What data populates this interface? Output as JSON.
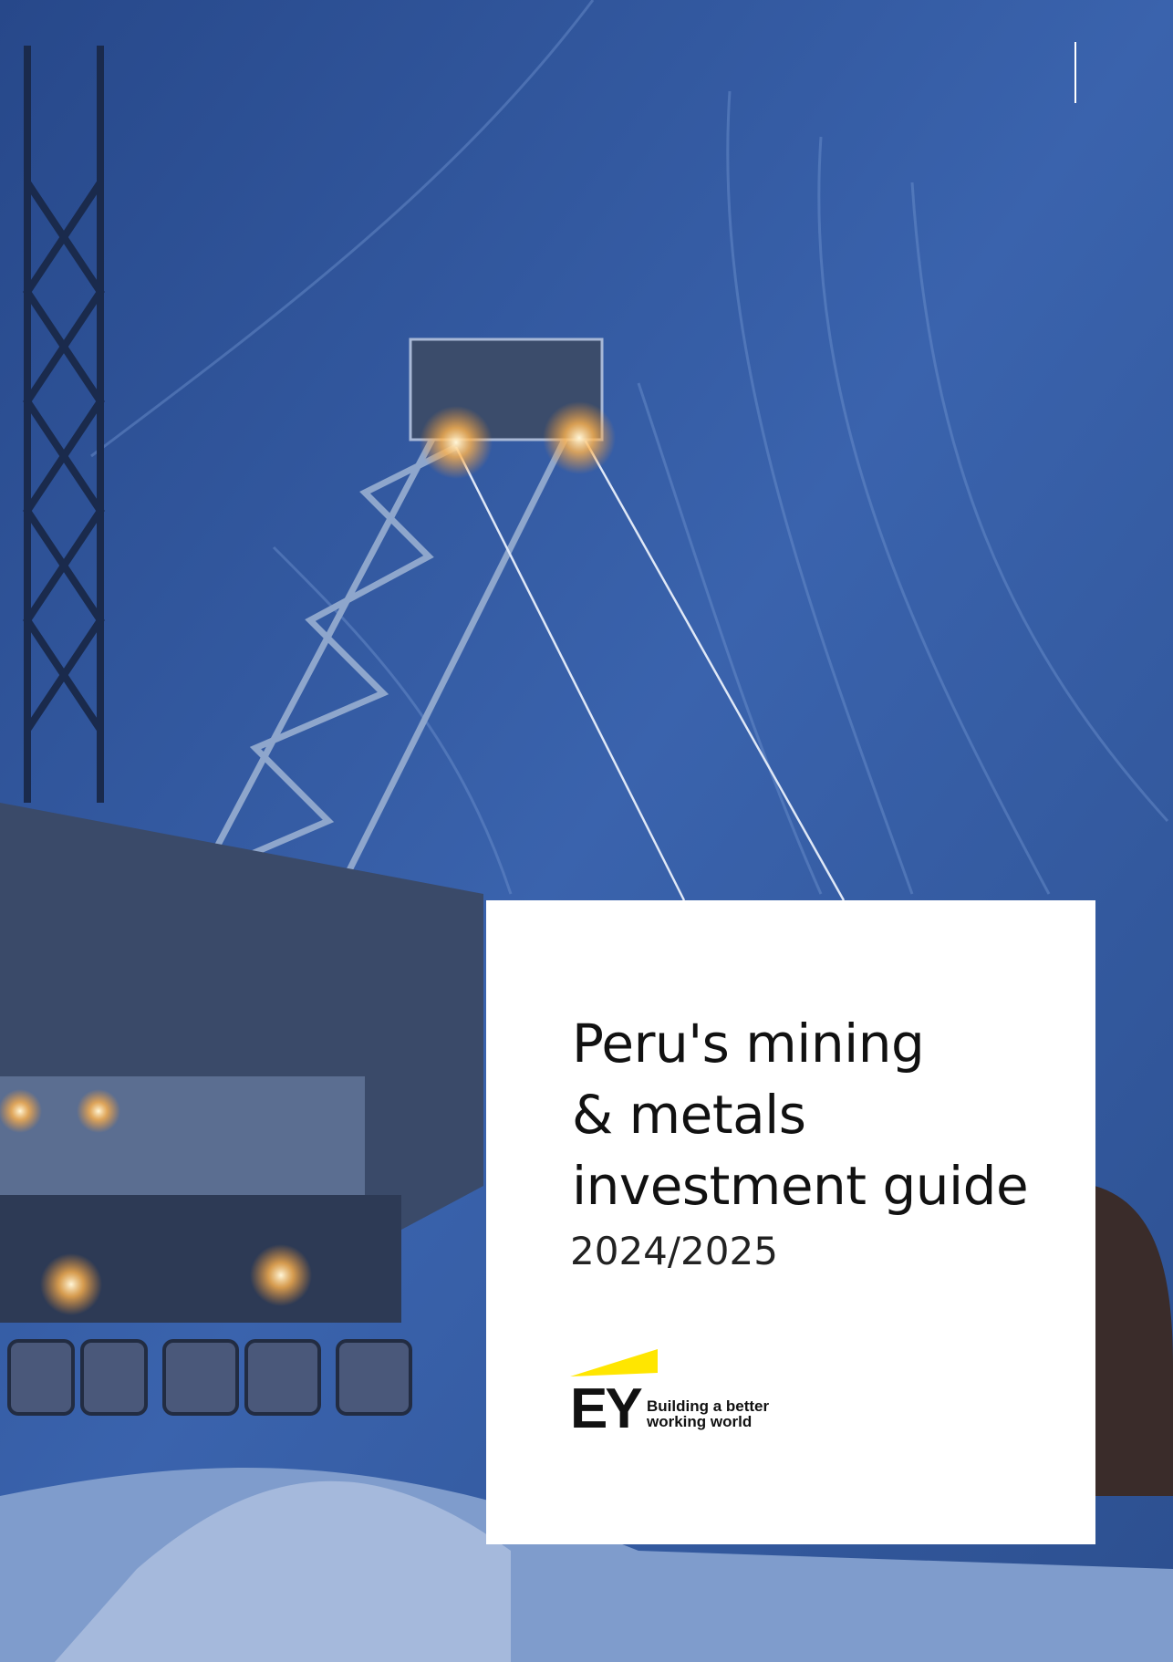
{
  "cover": {
    "title_lines": [
      "Peru's mining",
      "& metals",
      "investment guide"
    ],
    "year": "2024/2025",
    "logo": {
      "mark": "EY",
      "tagline_lines": [
        "Building a better",
        "working world"
      ]
    }
  }
}
